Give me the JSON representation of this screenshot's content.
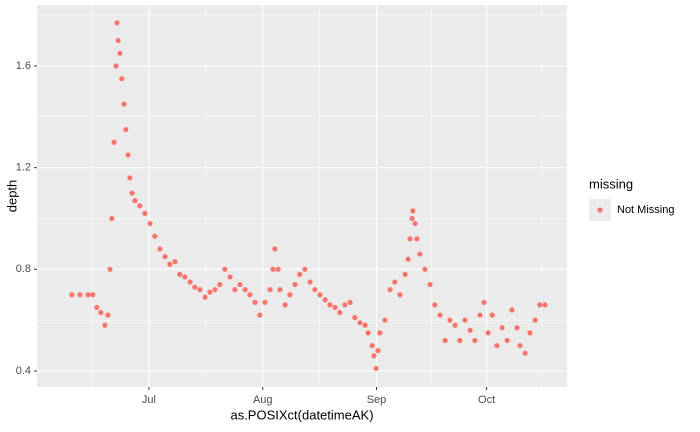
{
  "chart_data": {
    "type": "scatter",
    "x_label": "as.POSIXct(datetimeAK)",
    "y_label": "depth",
    "legend_title": "missing",
    "legend": "right",
    "grid": true,
    "xlim": [
      151.5,
      295.9
    ],
    "ylim": [
      0.337,
      1.84
    ],
    "xticks": [
      {
        "value": 182,
        "label": "Jul"
      },
      {
        "value": 213,
        "label": "Aug"
      },
      {
        "value": 244,
        "label": "Sep"
      },
      {
        "value": 274,
        "label": "Oct"
      }
    ],
    "yticks": [
      0.4,
      0.8,
      1.2,
      1.6
    ],
    "series": [
      {
        "name": "Not Missing",
        "color": "#F8766D",
        "x": [
          161.0,
          163.2,
          165.4,
          166.7,
          167.8,
          168.9,
          170.0,
          170.8,
          171.4,
          171.9,
          172.5,
          173.0,
          173.3,
          173.6,
          174.1,
          174.6,
          175.2,
          175.7,
          176.3,
          176.8,
          177.4,
          178.2,
          179.5,
          180.9,
          182.3,
          183.6,
          185.0,
          186.4,
          187.7,
          189.1,
          190.4,
          191.8,
          193.2,
          194.5,
          195.9,
          197.3,
          198.6,
          200.0,
          201.3,
          202.7,
          204.1,
          205.4,
          206.8,
          208.2,
          209.5,
          210.9,
          212.2,
          213.6,
          215.0,
          215.8,
          216.3,
          217.2,
          217.7,
          219.1,
          220.4,
          221.8,
          223.1,
          224.5,
          225.9,
          227.2,
          228.6,
          230.0,
          231.3,
          232.7,
          234.0,
          235.4,
          236.8,
          238.1,
          239.5,
          240.9,
          241.7,
          242.8,
          243.3,
          243.9,
          244.4,
          244.9,
          246.3,
          247.7,
          249.0,
          250.4,
          251.8,
          252.6,
          253.1,
          253.7,
          253.9,
          254.5,
          255.0,
          255.8,
          257.2,
          258.6,
          259.9,
          261.3,
          262.7,
          264.0,
          265.4,
          266.7,
          268.1,
          269.5,
          270.8,
          272.2,
          273.3,
          274.4,
          275.5,
          276.8,
          278.2,
          279.6,
          280.9,
          282.3,
          283.1,
          284.5,
          285.8,
          287.2,
          288.5,
          289.9
        ],
        "values": [
          0.7,
          0.7,
          0.7,
          0.7,
          0.65,
          0.63,
          0.58,
          0.62,
          0.8,
          1.0,
          1.3,
          1.6,
          1.77,
          1.7,
          1.65,
          1.55,
          1.45,
          1.35,
          1.25,
          1.16,
          1.1,
          1.07,
          1.05,
          1.02,
          0.98,
          0.93,
          0.88,
          0.85,
          0.82,
          0.83,
          0.78,
          0.77,
          0.75,
          0.73,
          0.72,
          0.69,
          0.71,
          0.72,
          0.74,
          0.8,
          0.77,
          0.72,
          0.74,
          0.72,
          0.7,
          0.67,
          0.62,
          0.67,
          0.72,
          0.8,
          0.88,
          0.8,
          0.72,
          0.66,
          0.7,
          0.74,
          0.78,
          0.8,
          0.75,
          0.72,
          0.7,
          0.68,
          0.66,
          0.65,
          0.63,
          0.66,
          0.67,
          0.61,
          0.59,
          0.58,
          0.55,
          0.5,
          0.46,
          0.41,
          0.48,
          0.55,
          0.6,
          0.72,
          0.75,
          0.7,
          0.78,
          0.84,
          0.92,
          1.0,
          1.03,
          0.98,
          0.92,
          0.86,
          0.8,
          0.74,
          0.66,
          0.62,
          0.52,
          0.6,
          0.58,
          0.52,
          0.6,
          0.56,
          0.52,
          0.62,
          0.67,
          0.55,
          0.62,
          0.5,
          0.57,
          0.52,
          0.64,
          0.57,
          0.5,
          0.47,
          0.55,
          0.6,
          0.66,
          0.66
        ]
      }
    ]
  }
}
